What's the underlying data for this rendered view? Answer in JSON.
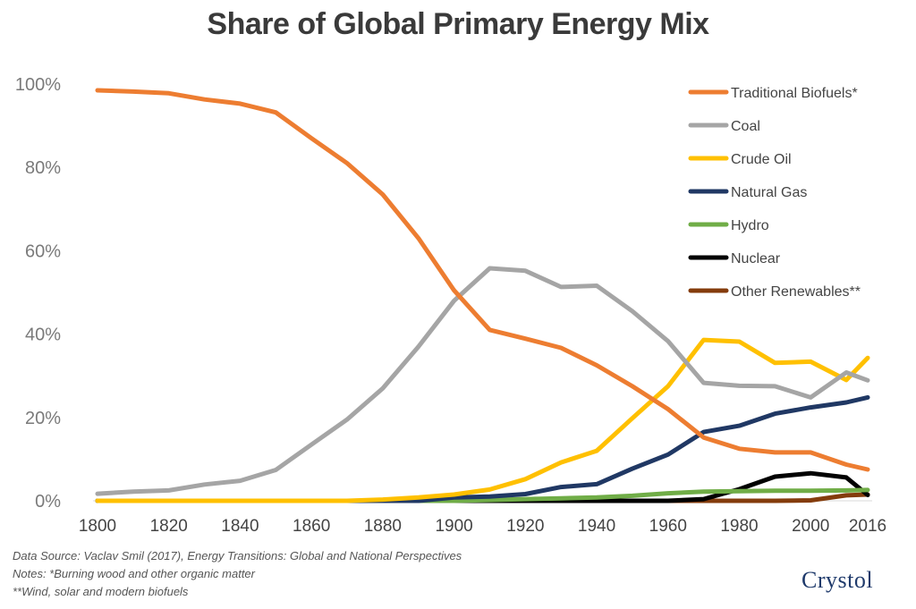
{
  "chart_data": {
    "type": "line",
    "title": "Share of Global Primary Energy Mix",
    "xlabel": "",
    "ylabel": "",
    "x": [
      1800,
      1810,
      1820,
      1830,
      1840,
      1850,
      1860,
      1870,
      1880,
      1890,
      1900,
      1910,
      1920,
      1930,
      1940,
      1950,
      1960,
      1970,
      1980,
      1990,
      2000,
      2010,
      2016
    ],
    "x_ticks": [
      "1800",
      "1820",
      "1840",
      "1860",
      "1880",
      "1900",
      "1920",
      "1940",
      "1960",
      "1980",
      "2000",
      "2016"
    ],
    "y_ticks": [
      "0%",
      "20%",
      "40%",
      "60%",
      "80%",
      "100%"
    ],
    "ylim": [
      0,
      100
    ],
    "series": [
      {
        "name": "Traditional Biofuels*",
        "color": "#ED7D31",
        "values": [
          98.5,
          98.2,
          97.8,
          96.3,
          95.3,
          93.2,
          87,
          81,
          73.5,
          63,
          50.5,
          41,
          38.9,
          36.7,
          32.5,
          27.5,
          22,
          15.2,
          12.5,
          11.6,
          11.6,
          8.7,
          7.5
        ]
      },
      {
        "name": "Coal",
        "color": "#A5A5A5",
        "values": [
          1.7,
          2.2,
          2.5,
          3.9,
          4.8,
          7.4,
          13.5,
          19.5,
          27,
          37,
          48,
          55.8,
          55.2,
          51.3,
          51.6,
          45.5,
          38.3,
          28.3,
          27.6,
          27.5,
          24.8,
          30.8,
          28.9
        ]
      },
      {
        "name": "Crude Oil",
        "color": "#FFC000",
        "values": [
          0,
          0,
          0,
          0,
          0,
          0,
          0,
          0,
          0.3,
          0.8,
          1.5,
          2.7,
          5.2,
          9.2,
          12,
          19.8,
          27.5,
          38.6,
          38.2,
          33.1,
          33.4,
          29,
          34.3
        ]
      },
      {
        "name": "Natural Gas",
        "color": "#203864",
        "values": [
          0,
          0,
          0,
          0,
          0,
          0,
          0,
          0,
          0,
          0,
          0.8,
          1,
          1.6,
          3.3,
          4,
          7.7,
          11.1,
          16.5,
          18,
          20.9,
          22.4,
          23.6,
          24.8
        ]
      },
      {
        "name": "Hydro",
        "color": "#70AD47",
        "values": [
          0,
          0,
          0,
          0,
          0,
          0,
          0,
          0,
          0,
          0,
          0,
          0.2,
          0.4,
          0.6,
          0.8,
          1.2,
          1.8,
          2.2,
          2.3,
          2.4,
          2.4,
          2.5,
          2.6
        ]
      },
      {
        "name": "Nuclear",
        "color": "#000000",
        "values": [
          0,
          0,
          0,
          0,
          0,
          0,
          0,
          0,
          0,
          0,
          0,
          0,
          0,
          0,
          0,
          0,
          0,
          0.4,
          2.8,
          5.8,
          6.6,
          5.6,
          1.4
        ]
      },
      {
        "name": "Other Renewables**",
        "color": "#843C0C",
        "values": [
          0,
          0,
          0,
          0,
          0,
          0,
          0,
          0,
          0,
          0,
          0,
          0,
          0,
          0,
          0,
          0,
          0,
          0,
          0,
          0,
          0.1,
          1.3,
          1.5
        ]
      }
    ],
    "legend_position": "top-right",
    "grid": false
  },
  "notes": {
    "source": "Data Source: Vaclav Smil (2017), Energy Transitions: Global and National Perspectives",
    "note1": "Notes: *Burning wood and other organic matter",
    "note2": "**Wind, solar and modern biofuels"
  },
  "logo": {
    "text": "Crystol"
  }
}
